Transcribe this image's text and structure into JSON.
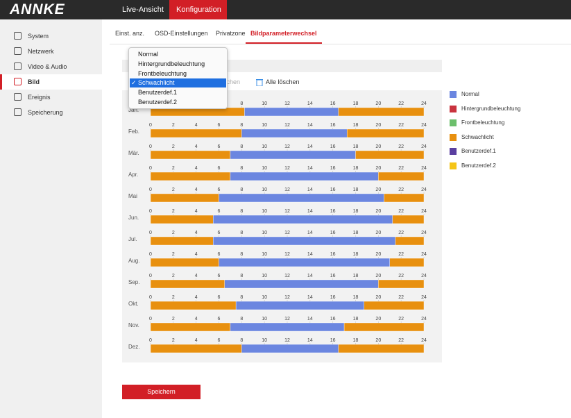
{
  "header": {
    "logo": "ANNKE",
    "tabs": [
      "Live-Ansicht",
      "Konfiguration"
    ],
    "active_tab": 1
  },
  "sidebar": {
    "items": [
      "System",
      "Netzwerk",
      "Video & Audio",
      "Bild",
      "Ereignis",
      "Speicherung"
    ],
    "active": 3
  },
  "subtabs": {
    "items": [
      "Einst. anz.",
      "OSD-Einstellungen",
      "Privatzone",
      "Bildparameterwechsel"
    ],
    "active": 3
  },
  "toolbar": {
    "delete": "Löschen",
    "delete_all": "Alle löschen"
  },
  "dropdown": {
    "options": [
      "Normal",
      "Hintergrundbeleuchtung",
      "Frontbeleuchtung",
      "Schwachlicht",
      "Benutzerdef.1",
      "Benutzerdef.2"
    ],
    "selected": 3
  },
  "legend": {
    "modes": [
      {
        "name": "Normal",
        "color": "#6b86e0"
      },
      {
        "name": "Hintergrundbeleuchtung",
        "color": "#c9333e"
      },
      {
        "name": "Frontbeleuchtung",
        "color": "#6cbf6c"
      },
      {
        "name": "Schwachlicht",
        "color": "#e8900f"
      },
      {
        "name": "Benutzerdef.1",
        "color": "#5a3fa0"
      },
      {
        "name": "Benutzerdef.2",
        "color": "#f5c518"
      }
    ]
  },
  "schedule": {
    "xlim": [
      0,
      24
    ],
    "ticks": [
      0,
      2,
      4,
      6,
      8,
      10,
      12,
      14,
      16,
      18,
      20,
      22,
      24
    ],
    "rows": [
      {
        "month": "Jan.",
        "segments": [
          {
            "mode": 3,
            "start": 0,
            "end": 8.25
          },
          {
            "mode": 0,
            "start": 8.25,
            "end": 16.5
          },
          {
            "mode": 3,
            "start": 16.5,
            "end": 24
          }
        ]
      },
      {
        "month": "Feb.",
        "segments": [
          {
            "mode": 3,
            "start": 0,
            "end": 8
          },
          {
            "mode": 0,
            "start": 8,
            "end": 17.25
          },
          {
            "mode": 3,
            "start": 17.25,
            "end": 24
          }
        ]
      },
      {
        "month": "Mär.",
        "segments": [
          {
            "mode": 3,
            "start": 0,
            "end": 7
          },
          {
            "mode": 0,
            "start": 7,
            "end": 18
          },
          {
            "mode": 3,
            "start": 18,
            "end": 24
          }
        ]
      },
      {
        "month": "Apr.",
        "segments": [
          {
            "mode": 3,
            "start": 0,
            "end": 7
          },
          {
            "mode": 0,
            "start": 7,
            "end": 20
          },
          {
            "mode": 3,
            "start": 20,
            "end": 24
          }
        ]
      },
      {
        "month": "Mai",
        "segments": [
          {
            "mode": 3,
            "start": 0,
            "end": 6
          },
          {
            "mode": 0,
            "start": 6,
            "end": 20.5
          },
          {
            "mode": 3,
            "start": 20.5,
            "end": 24
          }
        ]
      },
      {
        "month": "Jun.",
        "segments": [
          {
            "mode": 3,
            "start": 0,
            "end": 5.5
          },
          {
            "mode": 0,
            "start": 5.5,
            "end": 21.25
          },
          {
            "mode": 3,
            "start": 21.25,
            "end": 24
          }
        ]
      },
      {
        "month": "Jul.",
        "segments": [
          {
            "mode": 3,
            "start": 0,
            "end": 5.5
          },
          {
            "mode": 0,
            "start": 5.5,
            "end": 21.5
          },
          {
            "mode": 3,
            "start": 21.5,
            "end": 24
          }
        ]
      },
      {
        "month": "Aug.",
        "segments": [
          {
            "mode": 3,
            "start": 0,
            "end": 6
          },
          {
            "mode": 0,
            "start": 6,
            "end": 21
          },
          {
            "mode": 3,
            "start": 21,
            "end": 24
          }
        ]
      },
      {
        "month": "Sep.",
        "segments": [
          {
            "mode": 3,
            "start": 0,
            "end": 6.5
          },
          {
            "mode": 0,
            "start": 6.5,
            "end": 20
          },
          {
            "mode": 3,
            "start": 20,
            "end": 24
          }
        ]
      },
      {
        "month": "Okt.",
        "segments": [
          {
            "mode": 3,
            "start": 0,
            "end": 7.5
          },
          {
            "mode": 0,
            "start": 7.5,
            "end": 18.75
          },
          {
            "mode": 3,
            "start": 18.75,
            "end": 24
          }
        ]
      },
      {
        "month": "Nov.",
        "segments": [
          {
            "mode": 3,
            "start": 0,
            "end": 7
          },
          {
            "mode": 0,
            "start": 7,
            "end": 17
          },
          {
            "mode": 3,
            "start": 17,
            "end": 24
          }
        ]
      },
      {
        "month": "Dez.",
        "segments": [
          {
            "mode": 3,
            "start": 0,
            "end": 8
          },
          {
            "mode": 0,
            "start": 8,
            "end": 16.5
          },
          {
            "mode": 3,
            "start": 16.5,
            "end": 24
          }
        ]
      }
    ]
  },
  "save_button": "Speichern"
}
